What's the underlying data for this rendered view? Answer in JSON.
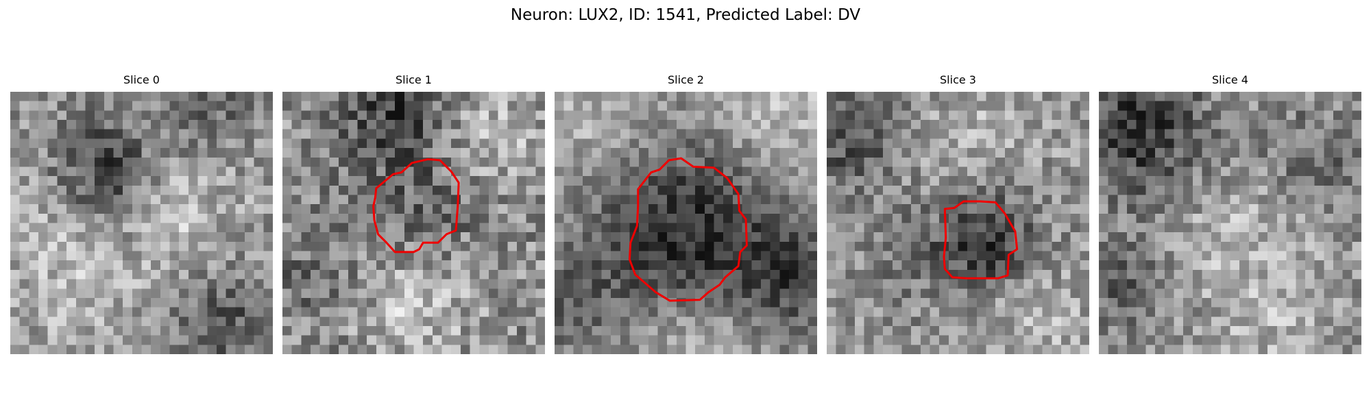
{
  "figure": {
    "title": "Neuron: LUX2, ID: 1541, Predicted Label: DV"
  },
  "colors": {
    "contour": "#ee0000",
    "background": "#ffffff",
    "pixel_low": "#101010",
    "pixel_high": "#f4f4f4"
  },
  "panels": [
    {
      "title": "Slice 0",
      "has_contour": false
    },
    {
      "title": "Slice 1",
      "has_contour": true
    },
    {
      "title": "Slice 2",
      "has_contour": true
    },
    {
      "title": "Slice 3",
      "has_contour": true
    },
    {
      "title": "Slice 4",
      "has_contour": false
    }
  ]
}
